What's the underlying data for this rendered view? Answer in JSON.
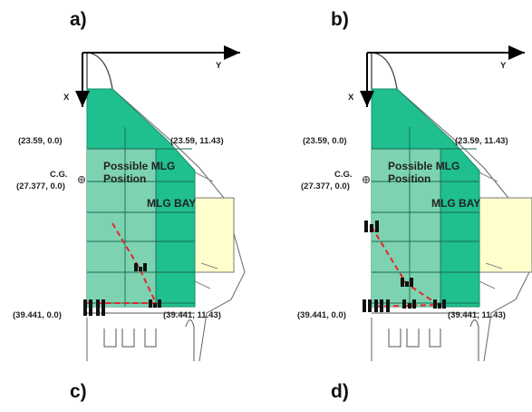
{
  "panels": {
    "a": {
      "label": "a)"
    },
    "b": {
      "label": "b)"
    },
    "c": {
      "label": "c)"
    },
    "d": {
      "label": "d)"
    }
  },
  "axes": {
    "x": "X",
    "y": "Y"
  },
  "coords": {
    "top_left": "(23.59, 0.0)",
    "top_right": "(23.59, 11.43)",
    "bottom_left": "(39.441, 0.0)",
    "bottom_right": "(39.441, 11.43)"
  },
  "cg": {
    "label": "C.G.",
    "coord": "(27.377, 0.0)"
  },
  "region": {
    "line1": "Possible MLG",
    "line2": "Position"
  },
  "bay": "MLG BAY",
  "colors": {
    "fuselage_green": "#1fbf8f",
    "region_green": "#8ed6b7",
    "bay_yellow": "#ffffcc",
    "path_red": "#e8232a",
    "gear_black": "#111111"
  }
}
